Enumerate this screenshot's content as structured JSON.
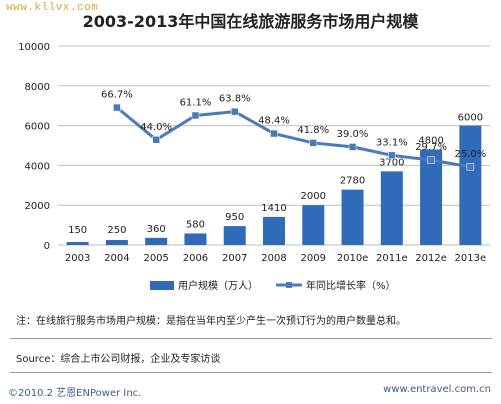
{
  "watermark": "www.kllvx.com",
  "note": "注：在线旅行服务市场用户规模：是指在当年内至少产生一次预订行为的用户数量总和。",
  "source": "Source：综合上市公司财报，企业及专家访谈",
  "footer": {
    "left": "©2010.2 艺恩ENPower Inc.",
    "right": "www.entravel.com.cn"
  },
  "colors": {
    "bar": "#2f6bb8",
    "line": "#4a7ab8",
    "grid": "#bfbfbf"
  },
  "chart_data": {
    "type": "bar",
    "title": "2003-2013年中国在线旅游服务市场用户规模",
    "categories": [
      "2003",
      "2004",
      "2005",
      "2006",
      "2007",
      "2008",
      "2009",
      "2010e",
      "2011e",
      "2012e",
      "2013e"
    ],
    "series": [
      {
        "name": "用户规模（万人）",
        "type": "bar",
        "values": [
          150,
          250,
          360,
          580,
          950,
          1410,
          2000,
          2780,
          3700,
          4800,
          6000
        ],
        "labels": [
          "150",
          "250",
          "360",
          "580",
          "950",
          "1410",
          "2000",
          "2780",
          "3700",
          "4800",
          "6000"
        ]
      },
      {
        "name": "年同比增长率（%）",
        "type": "line",
        "values": [
          null,
          66.7,
          44.0,
          61.1,
          63.8,
          48.4,
          41.8,
          39.0,
          33.1,
          29.7,
          25.0
        ],
        "labels": [
          "",
          "66.7%",
          "44.0%",
          "61.1%",
          "63.8%",
          "48.4%",
          "41.8%",
          "39.0%",
          "33.1%",
          "29.7%",
          "25.0%"
        ]
      }
    ],
    "yticks": [
      "0",
      "2000",
      "4000",
      "6000",
      "8000",
      "10000"
    ],
    "ylim": [
      0,
      10000
    ],
    "line_scale": [
      -30,
      110
    ],
    "grid": true,
    "legend": "bottom"
  }
}
